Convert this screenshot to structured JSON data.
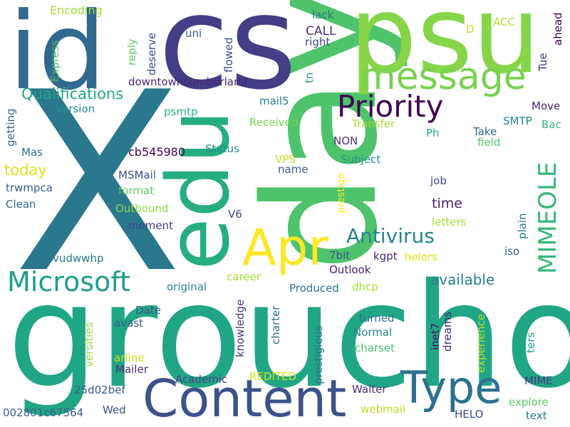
{
  "words": [
    {
      "text": "X",
      "color": "#2a788e"
    },
    {
      "text": "groucho",
      "color": "#21a685"
    },
    {
      "text": "day",
      "color": "#4ec36b"
    },
    {
      "text": "psu",
      "color": "#86d549"
    },
    {
      "text": "cs",
      "color": "#433e85"
    },
    {
      "text": "id",
      "color": "#31688e"
    },
    {
      "text": "edu",
      "color": "#26ad81"
    },
    {
      "text": "Content",
      "color": "#3b528b"
    },
    {
      "text": "Type",
      "color": "#2c728e"
    },
    {
      "text": "Apr",
      "color": "#fde725"
    },
    {
      "text": "message",
      "color": "#7ad151"
    },
    {
      "text": "Microsoft",
      "color": "#1f9e89"
    },
    {
      "text": "Priority",
      "color": "#440154"
    },
    {
      "text": "MIMEOLE",
      "color": "#35b779"
    },
    {
      "text": "Antivirus",
      "color": "#25858e"
    },
    {
      "text": "Qualifications",
      "color": "#22a785"
    },
    {
      "text": "available",
      "color": "#277f8e"
    },
    {
      "text": "today",
      "color": "#dde318"
    },
    {
      "text": "time",
      "color": "#482475"
    },
    {
      "text": "Encoding",
      "color": "#a5db36"
    },
    {
      "text": "Express",
      "color": "#4ac16d"
    },
    {
      "text": "reply",
      "color": "#5ec962"
    },
    {
      "text": "deserve",
      "color": "#3e4989"
    },
    {
      "text": "uni",
      "color": "#38588c"
    },
    {
      "text": "flowed",
      "color": "#3b528b"
    },
    {
      "text": "lack",
      "color": "#2c728e"
    },
    {
      "text": "right",
      "color": "#414487"
    },
    {
      "text": "CALL",
      "color": "#472c7a"
    },
    {
      "text": "D",
      "color": "#c2df23"
    },
    {
      "text": "ACC",
      "color": "#addc30"
    },
    {
      "text": "ahead",
      "color": "#440154"
    },
    {
      "text": "Tue",
      "color": "#46337f"
    },
    {
      "text": "downtowncumberland",
      "color": "#482878"
    },
    {
      "text": "mail5",
      "color": "#2a788e"
    },
    {
      "text": "tn",
      "color": "#1f9a8a"
    },
    {
      "text": "Move",
      "color": "#482475"
    },
    {
      "text": "Bac",
      "color": "#35b779"
    },
    {
      "text": "SMTP",
      "color": "#26828e"
    },
    {
      "text": "Version",
      "color": "#20928c"
    },
    {
      "text": "psmtp",
      "color": "#2db27d"
    },
    {
      "text": "Received",
      "color": "#7ad151"
    },
    {
      "text": "Transfer",
      "color": "#a8db34"
    },
    {
      "text": "getting",
      "color": "#33638d"
    },
    {
      "text": "Mas",
      "color": "#2d708e"
    },
    {
      "text": "cb545980",
      "color": "#440154"
    },
    {
      "text": "Status",
      "color": "#21918c"
    },
    {
      "text": "NON",
      "color": "#46337f"
    },
    {
      "text": "Ph",
      "color": "#29af7f"
    },
    {
      "text": "Take",
      "color": "#31688e"
    },
    {
      "text": "field",
      "color": "#52c569"
    },
    {
      "text": "VPS",
      "color": "#c2df23"
    },
    {
      "text": "Subject",
      "color": "#21918c"
    },
    {
      "text": "name",
      "color": "#39558c"
    },
    {
      "text": "prestige",
      "color": "#fde725"
    },
    {
      "text": "job",
      "color": "#3e4989"
    },
    {
      "text": "trwmpca",
      "color": "#34618d"
    },
    {
      "text": "MSMail",
      "color": "#3e4c8a"
    },
    {
      "text": "format",
      "color": "#5ec962"
    },
    {
      "text": "Clean",
      "color": "#306a8e"
    },
    {
      "text": "Outbound",
      "color": "#8fd744"
    },
    {
      "text": "letters",
      "color": "#a8db34"
    },
    {
      "text": "plain",
      "color": "#2a788e"
    },
    {
      "text": "V6",
      "color": "#3e4a89"
    },
    {
      "text": "moment",
      "color": "#424086"
    },
    {
      "text": "vudwwhp",
      "color": "#2a788e"
    },
    {
      "text": "7bit",
      "color": "#3b528b"
    },
    {
      "text": "kgpt",
      "color": "#482878"
    },
    {
      "text": "helors",
      "color": "#dde318"
    },
    {
      "text": "iso",
      "color": "#355f8d"
    },
    {
      "text": "Outlook",
      "color": "#482071"
    },
    {
      "text": "career",
      "color": "#a5db36"
    },
    {
      "text": "Produced",
      "color": "#2c728e"
    },
    {
      "text": "original",
      "color": "#24868e"
    },
    {
      "text": "knowledge",
      "color": "#453781"
    },
    {
      "text": "charter",
      "color": "#2d718e"
    },
    {
      "text": "dhcp",
      "color": "#addc30"
    },
    {
      "text": "prestigious",
      "color": "#2c728e"
    },
    {
      "text": "inet7",
      "color": "#470e61"
    },
    {
      "text": "dreams",
      "color": "#482677"
    },
    {
      "text": "experience",
      "color": "#b5de2b"
    },
    {
      "text": "ters",
      "color": "#1f9e89"
    },
    {
      "text": "versities",
      "color": "#95d840"
    },
    {
      "text": "Date",
      "color": "#38588c"
    },
    {
      "text": "avast",
      "color": "#38588c"
    },
    {
      "text": "arline",
      "color": "#d0e11c"
    },
    {
      "text": "Mailer",
      "color": "#472a7a"
    },
    {
      "text": "turned",
      "color": "#2d708e"
    },
    {
      "text": "Normal",
      "color": "#26828e"
    },
    {
      "text": "charset",
      "color": "#4ac16d"
    },
    {
      "text": "REDITED",
      "color": "#d8e219"
    },
    {
      "text": "Academic",
      "color": "#423f85"
    },
    {
      "text": "25d02bef",
      "color": "#38588c"
    },
    {
      "text": "MIME",
      "color": "#443983"
    },
    {
      "text": "Walter",
      "color": "#482878"
    },
    {
      "text": "explore",
      "color": "#5ec962"
    },
    {
      "text": "webmail",
      "color": "#b8de29"
    },
    {
      "text": "HELO",
      "color": "#3e4989"
    },
    {
      "text": "text",
      "color": "#2a788e"
    },
    {
      "text": "002801c67564",
      "color": "#365c8d"
    },
    {
      "text": "Wed",
      "color": "#3b528b"
    }
  ]
}
